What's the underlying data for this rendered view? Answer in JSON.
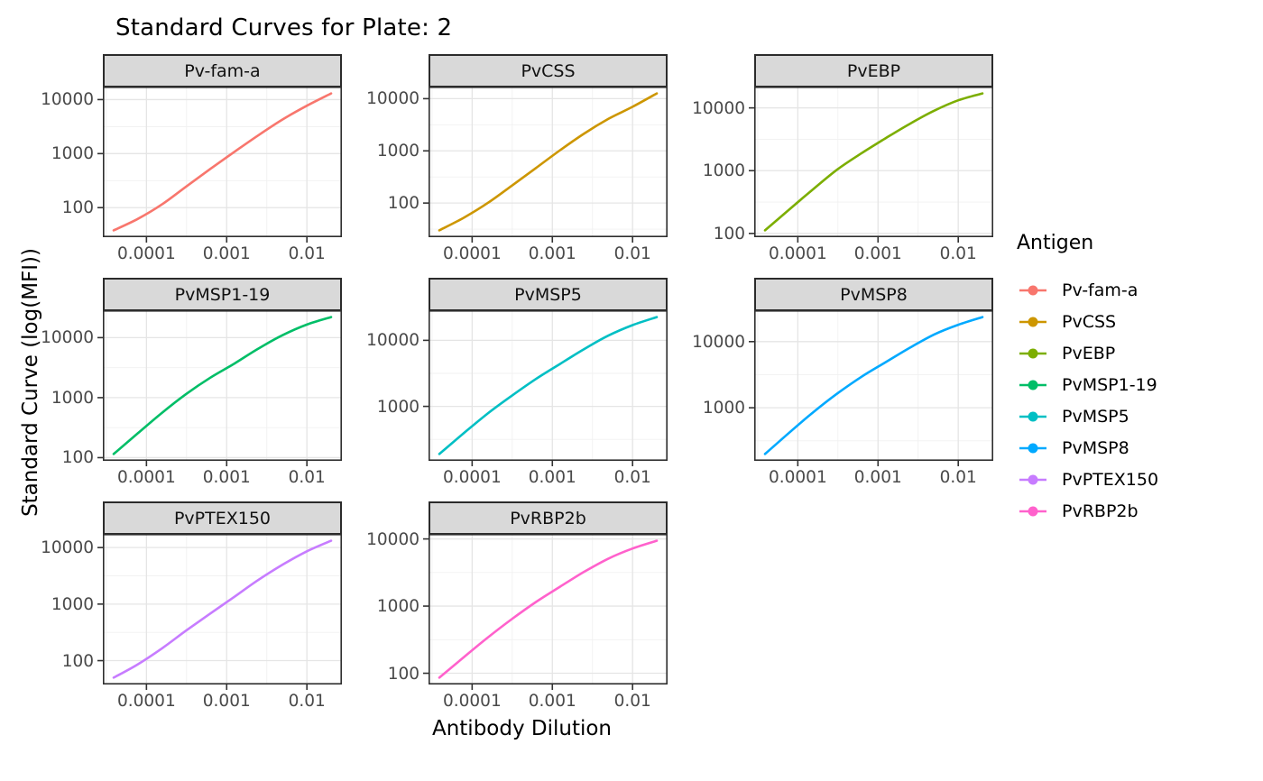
{
  "title": "Standard Curves for Plate: 2",
  "axes": {
    "x_title": "Antibody Dilution",
    "y_title": "Standard Curve (log(MFI))"
  },
  "legend": {
    "title": "Antigen",
    "position": "right",
    "entries": [
      "Pv-fam-a",
      "PvCSS",
      "PvEBP",
      "PvMSP1-19",
      "PvMSP5",
      "PvMSP8",
      "PvPTEX150",
      "PvRBP2b"
    ]
  },
  "theme": {
    "panel_background": "#ffffff",
    "panel_border": "#2e2e2e",
    "strip_background": "#d9d9d9",
    "strip_border": "#2b2b2b",
    "grid_major": "#e5e5e5",
    "grid_minor": "#f1f1f1",
    "tick_color": "#333333",
    "tick_text_color": "#4a4a4a",
    "text_color": "#000000"
  },
  "chart_data": {
    "type": "line",
    "title": "Standard Curves for Plate: 2",
    "xlabel": "Antibody Dilution",
    "ylabel": "Standard Curve (log(MFI))",
    "x_scale": "log10",
    "y_scale": "log10",
    "grid": true,
    "legend_position": "right",
    "facets_per_row": 3,
    "free_y_scales": true,
    "x_domain": [
      2.86e-05,
      0.0273
    ],
    "x_ticks": [
      0.0001,
      0.001,
      0.01
    ],
    "x_tick_labels": [
      "0.0001",
      "0.001",
      "0.01"
    ],
    "x": [
      3.90625e-05,
      7.8125e-05,
      0.00015625,
      0.0003125,
      0.000625,
      0.00125,
      0.0025,
      0.005,
      0.01,
      0.02
    ],
    "series": [
      {
        "name": "Pv-fam-a",
        "color": "#F8766D",
        "y": [
          38,
          62,
          115,
          245,
          520,
          1080,
          2200,
          4300,
          7700,
          13000
        ],
        "y_ticks": [
          100,
          1000,
          10000
        ],
        "y_range_approx": [
          28,
          17400
        ]
      },
      {
        "name": "PvCSS",
        "color": "#CD9600",
        "y": [
          30,
          52,
          100,
          215,
          470,
          1030,
          2150,
          4100,
          7000,
          12600
        ],
        "y_ticks": [
          100,
          1000,
          10000
        ],
        "y_range_approx": [
          22,
          17000
        ]
      },
      {
        "name": "PvEBP",
        "color": "#7CAE00",
        "y": [
          112,
          240,
          510,
          1050,
          1900,
          3300,
          5600,
          9000,
          13200,
          17000
        ],
        "y_ticks": [
          100,
          1000,
          10000
        ],
        "y_range_approx": [
          87,
          21900
        ]
      },
      {
        "name": "PvMSP1-19",
        "color": "#00BE67",
        "y": [
          115,
          255,
          560,
          1150,
          2150,
          3700,
          6600,
          11000,
          16500,
          22000
        ],
        "y_ticks": [
          100,
          1000,
          10000
        ],
        "y_range_approx": [
          88,
          28600
        ]
      },
      {
        "name": "PvMSP5",
        "color": "#00BFC4",
        "y": [
          190,
          390,
          780,
          1450,
          2600,
          4400,
          7400,
          11800,
          17000,
          22500
        ],
        "y_ticks": [
          1000,
          10000
        ],
        "y_range_approx": [
          150,
          28600
        ]
      },
      {
        "name": "PvMSP8",
        "color": "#00A9FF",
        "y": [
          200,
          420,
          860,
          1650,
          2950,
          4900,
          8100,
          12800,
          18000,
          23500
        ],
        "y_ticks": [
          1000,
          10000
        ],
        "y_range_approx": [
          158,
          29800
        ]
      },
      {
        "name": "PvPTEX150",
        "color": "#C77CFF",
        "y": [
          50,
          86,
          165,
          340,
          680,
          1350,
          2700,
          5000,
          8600,
          13200
        ],
        "y_ticks": [
          100,
          1000,
          10000
        ],
        "y_range_approx": [
          38,
          17400
        ]
      },
      {
        "name": "PvRBP2b",
        "color": "#FF61CC",
        "y": [
          86,
          172,
          340,
          640,
          1150,
          1950,
          3250,
          5100,
          7200,
          9400
        ],
        "y_ticks": [
          100,
          1000,
          10000
        ],
        "y_range_approx": [
          68,
          11900
        ]
      }
    ]
  }
}
